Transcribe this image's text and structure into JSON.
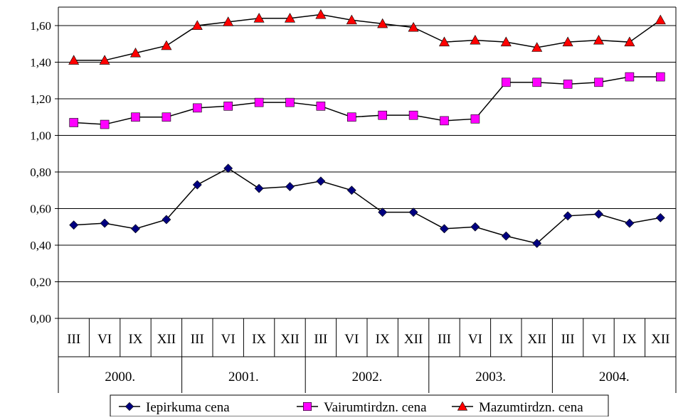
{
  "chart_data": {
    "type": "line",
    "title": "",
    "xlabel": "",
    "ylabel": "",
    "ylim": [
      0,
      1.6
    ],
    "ytick_labels": [
      "0,00",
      "0,20",
      "0,40",
      "0,60",
      "0,80",
      "1,00",
      "1,20",
      "1,40",
      "1,60"
    ],
    "grid": "horizontal",
    "legend_position": "bottom",
    "categories": [
      "III",
      "VI",
      "IX",
      "XII",
      "III",
      "VI",
      "IX",
      "XII",
      "III",
      "VI",
      "IX",
      "XII",
      "III",
      "VI",
      "IX",
      "XII",
      "III",
      "VI",
      "IX",
      "XII"
    ],
    "years": [
      "2000.",
      "2001.",
      "2002.",
      "2003.",
      "2004."
    ],
    "series": [
      {
        "name": "Iepirkuma cena",
        "marker": "diamond",
        "color": "#000080",
        "values": [
          0.51,
          0.52,
          0.49,
          0.54,
          0.73,
          0.82,
          0.71,
          0.72,
          0.75,
          0.7,
          0.58,
          0.58,
          0.49,
          0.5,
          0.45,
          0.41,
          0.56,
          0.57,
          0.52,
          0.55
        ]
      },
      {
        "name": "Vairumtirdzn. cena",
        "marker": "square",
        "color": "#FF00FF",
        "values": [
          1.07,
          1.06,
          1.1,
          1.1,
          1.15,
          1.16,
          1.18,
          1.18,
          1.16,
          1.1,
          1.11,
          1.11,
          1.08,
          1.09,
          1.29,
          1.29,
          1.28,
          1.29,
          1.32,
          1.32
        ]
      },
      {
        "name": "Mazumtirdzn. cena",
        "marker": "triangle",
        "color": "#FF0000",
        "values": [
          1.41,
          1.41,
          1.45,
          1.49,
          1.6,
          1.62,
          1.64,
          1.64,
          1.66,
          1.63,
          1.61,
          1.59,
          1.51,
          1.52,
          1.51,
          1.48,
          1.51,
          1.52,
          1.51,
          1.63
        ]
      }
    ]
  }
}
